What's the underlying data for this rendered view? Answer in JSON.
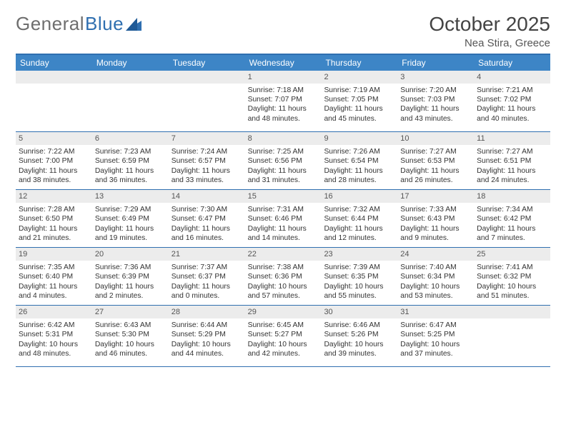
{
  "logo": {
    "text1": "General",
    "text2": "Blue"
  },
  "title": "October 2025",
  "location": "Nea Stira, Greece",
  "colors": {
    "header_bg": "#3d85c6",
    "border": "#2f6fb0",
    "datebar_bg": "#ececec",
    "text": "#333333",
    "title_text": "#444444"
  },
  "day_headers": [
    "Sunday",
    "Monday",
    "Tuesday",
    "Wednesday",
    "Thursday",
    "Friday",
    "Saturday"
  ],
  "weeks": [
    [
      {
        "date": "",
        "sunrise": "",
        "sunset": "",
        "daylight": ""
      },
      {
        "date": "",
        "sunrise": "",
        "sunset": "",
        "daylight": ""
      },
      {
        "date": "",
        "sunrise": "",
        "sunset": "",
        "daylight": ""
      },
      {
        "date": "1",
        "sunrise": "Sunrise: 7:18 AM",
        "sunset": "Sunset: 7:07 PM",
        "daylight": "Daylight: 11 hours and 48 minutes."
      },
      {
        "date": "2",
        "sunrise": "Sunrise: 7:19 AM",
        "sunset": "Sunset: 7:05 PM",
        "daylight": "Daylight: 11 hours and 45 minutes."
      },
      {
        "date": "3",
        "sunrise": "Sunrise: 7:20 AM",
        "sunset": "Sunset: 7:03 PM",
        "daylight": "Daylight: 11 hours and 43 minutes."
      },
      {
        "date": "4",
        "sunrise": "Sunrise: 7:21 AM",
        "sunset": "Sunset: 7:02 PM",
        "daylight": "Daylight: 11 hours and 40 minutes."
      }
    ],
    [
      {
        "date": "5",
        "sunrise": "Sunrise: 7:22 AM",
        "sunset": "Sunset: 7:00 PM",
        "daylight": "Daylight: 11 hours and 38 minutes."
      },
      {
        "date": "6",
        "sunrise": "Sunrise: 7:23 AM",
        "sunset": "Sunset: 6:59 PM",
        "daylight": "Daylight: 11 hours and 36 minutes."
      },
      {
        "date": "7",
        "sunrise": "Sunrise: 7:24 AM",
        "sunset": "Sunset: 6:57 PM",
        "daylight": "Daylight: 11 hours and 33 minutes."
      },
      {
        "date": "8",
        "sunrise": "Sunrise: 7:25 AM",
        "sunset": "Sunset: 6:56 PM",
        "daylight": "Daylight: 11 hours and 31 minutes."
      },
      {
        "date": "9",
        "sunrise": "Sunrise: 7:26 AM",
        "sunset": "Sunset: 6:54 PM",
        "daylight": "Daylight: 11 hours and 28 minutes."
      },
      {
        "date": "10",
        "sunrise": "Sunrise: 7:27 AM",
        "sunset": "Sunset: 6:53 PM",
        "daylight": "Daylight: 11 hours and 26 minutes."
      },
      {
        "date": "11",
        "sunrise": "Sunrise: 7:27 AM",
        "sunset": "Sunset: 6:51 PM",
        "daylight": "Daylight: 11 hours and 24 minutes."
      }
    ],
    [
      {
        "date": "12",
        "sunrise": "Sunrise: 7:28 AM",
        "sunset": "Sunset: 6:50 PM",
        "daylight": "Daylight: 11 hours and 21 minutes."
      },
      {
        "date": "13",
        "sunrise": "Sunrise: 7:29 AM",
        "sunset": "Sunset: 6:49 PM",
        "daylight": "Daylight: 11 hours and 19 minutes."
      },
      {
        "date": "14",
        "sunrise": "Sunrise: 7:30 AM",
        "sunset": "Sunset: 6:47 PM",
        "daylight": "Daylight: 11 hours and 16 minutes."
      },
      {
        "date": "15",
        "sunrise": "Sunrise: 7:31 AM",
        "sunset": "Sunset: 6:46 PM",
        "daylight": "Daylight: 11 hours and 14 minutes."
      },
      {
        "date": "16",
        "sunrise": "Sunrise: 7:32 AM",
        "sunset": "Sunset: 6:44 PM",
        "daylight": "Daylight: 11 hours and 12 minutes."
      },
      {
        "date": "17",
        "sunrise": "Sunrise: 7:33 AM",
        "sunset": "Sunset: 6:43 PM",
        "daylight": "Daylight: 11 hours and 9 minutes."
      },
      {
        "date": "18",
        "sunrise": "Sunrise: 7:34 AM",
        "sunset": "Sunset: 6:42 PM",
        "daylight": "Daylight: 11 hours and 7 minutes."
      }
    ],
    [
      {
        "date": "19",
        "sunrise": "Sunrise: 7:35 AM",
        "sunset": "Sunset: 6:40 PM",
        "daylight": "Daylight: 11 hours and 4 minutes."
      },
      {
        "date": "20",
        "sunrise": "Sunrise: 7:36 AM",
        "sunset": "Sunset: 6:39 PM",
        "daylight": "Daylight: 11 hours and 2 minutes."
      },
      {
        "date": "21",
        "sunrise": "Sunrise: 7:37 AM",
        "sunset": "Sunset: 6:37 PM",
        "daylight": "Daylight: 11 hours and 0 minutes."
      },
      {
        "date": "22",
        "sunrise": "Sunrise: 7:38 AM",
        "sunset": "Sunset: 6:36 PM",
        "daylight": "Daylight: 10 hours and 57 minutes."
      },
      {
        "date": "23",
        "sunrise": "Sunrise: 7:39 AM",
        "sunset": "Sunset: 6:35 PM",
        "daylight": "Daylight: 10 hours and 55 minutes."
      },
      {
        "date": "24",
        "sunrise": "Sunrise: 7:40 AM",
        "sunset": "Sunset: 6:34 PM",
        "daylight": "Daylight: 10 hours and 53 minutes."
      },
      {
        "date": "25",
        "sunrise": "Sunrise: 7:41 AM",
        "sunset": "Sunset: 6:32 PM",
        "daylight": "Daylight: 10 hours and 51 minutes."
      }
    ],
    [
      {
        "date": "26",
        "sunrise": "Sunrise: 6:42 AM",
        "sunset": "Sunset: 5:31 PM",
        "daylight": "Daylight: 10 hours and 48 minutes."
      },
      {
        "date": "27",
        "sunrise": "Sunrise: 6:43 AM",
        "sunset": "Sunset: 5:30 PM",
        "daylight": "Daylight: 10 hours and 46 minutes."
      },
      {
        "date": "28",
        "sunrise": "Sunrise: 6:44 AM",
        "sunset": "Sunset: 5:29 PM",
        "daylight": "Daylight: 10 hours and 44 minutes."
      },
      {
        "date": "29",
        "sunrise": "Sunrise: 6:45 AM",
        "sunset": "Sunset: 5:27 PM",
        "daylight": "Daylight: 10 hours and 42 minutes."
      },
      {
        "date": "30",
        "sunrise": "Sunrise: 6:46 AM",
        "sunset": "Sunset: 5:26 PM",
        "daylight": "Daylight: 10 hours and 39 minutes."
      },
      {
        "date": "31",
        "sunrise": "Sunrise: 6:47 AM",
        "sunset": "Sunset: 5:25 PM",
        "daylight": "Daylight: 10 hours and 37 minutes."
      },
      {
        "date": "",
        "sunrise": "",
        "sunset": "",
        "daylight": ""
      }
    ]
  ]
}
